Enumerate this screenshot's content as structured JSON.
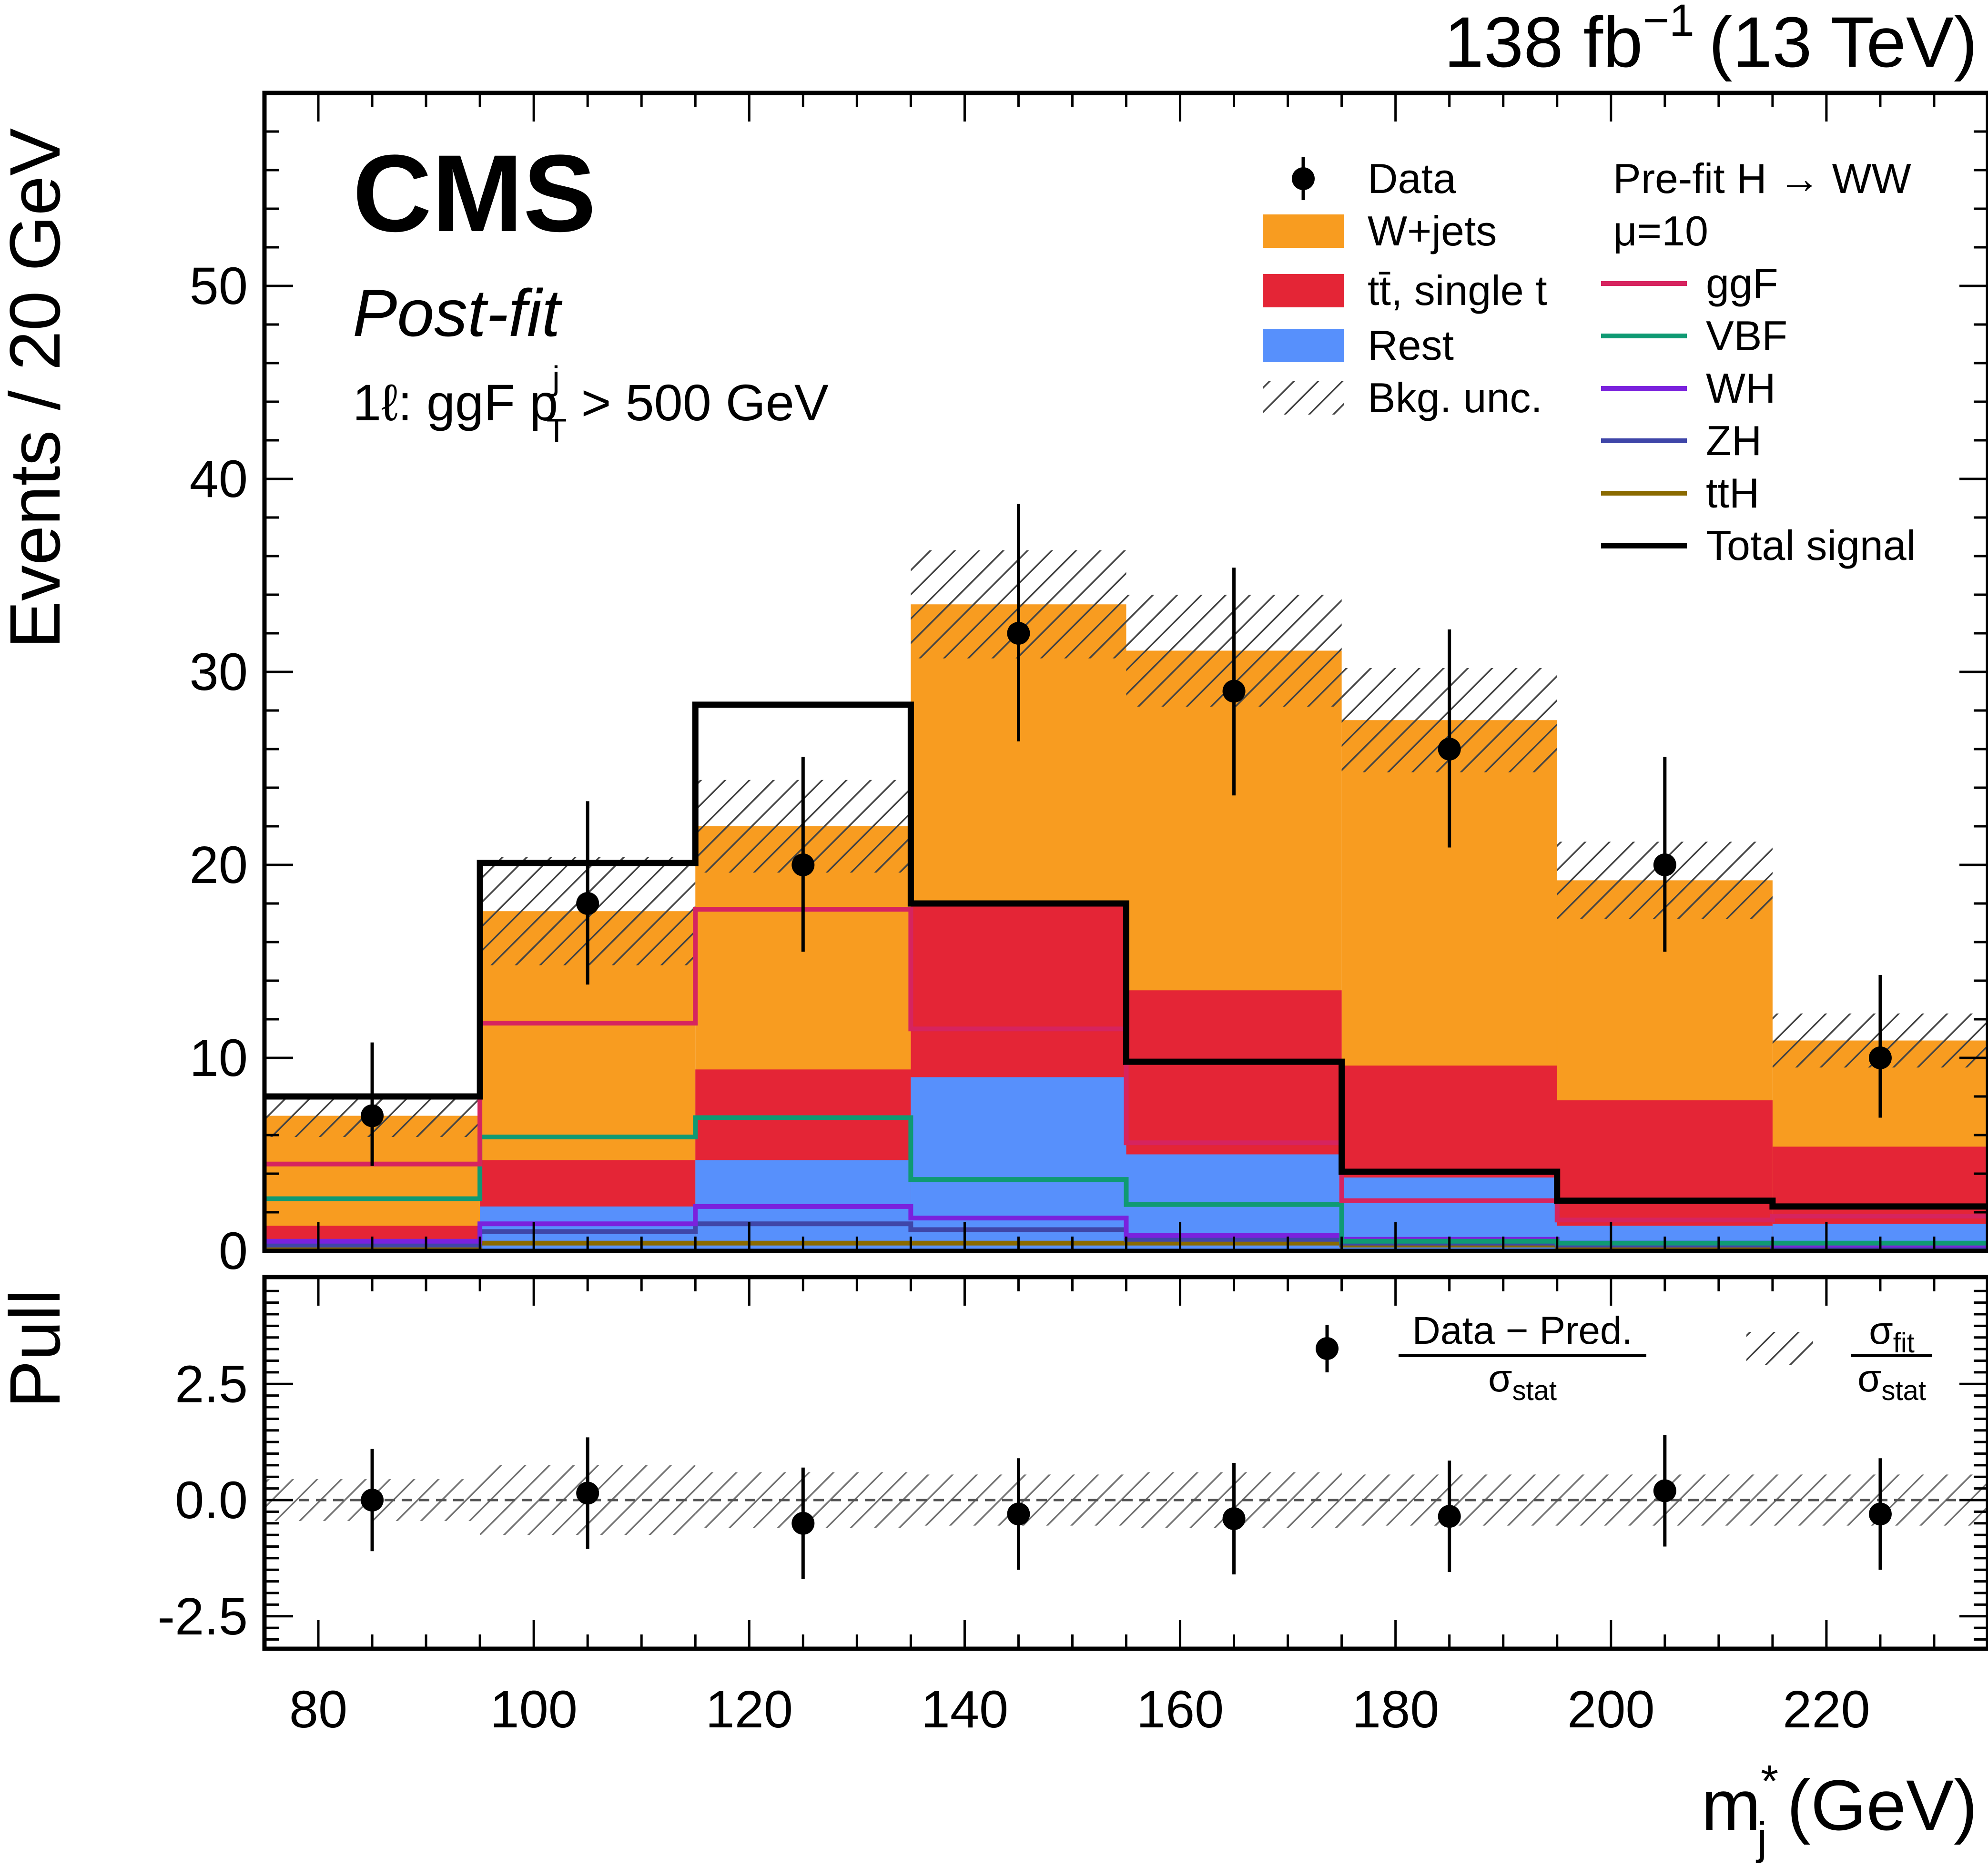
{
  "header": {
    "lumi": "138 fb",
    "lumi_exp": "−1",
    "energy": "(13 TeV)",
    "experiment": "CMS",
    "fit_label": "Post-fit",
    "region_a": "1ℓ: ggF p",
    "region_sub": "T",
    "region_sup": "j",
    "region_b": " > 500 GeV"
  },
  "axes": {
    "main_ylabel": "Events / 20 GeV",
    "pull_ylabel": "Pull",
    "xlabel_main": "m",
    "xlabel_sub": "j",
    "xlabel_sup": "*",
    "xlabel_unit": " (GeV)",
    "x_range": [
      75,
      235
    ],
    "y_range": [
      0,
      60
    ],
    "pull_range": [
      -3.2,
      4.8
    ]
  },
  "legend": {
    "data": "Data",
    "wjets": "W+jets",
    "tt": "tt̄, single t",
    "rest": "Rest",
    "unc": "Bkg. unc.",
    "signal_title": "Pre-fit H → WW",
    "mu": "μ=10",
    "ggf": "ggF",
    "vbf": "VBF",
    "wh": "WH",
    "zh": "ZH",
    "tth": "ttH",
    "total": "Total signal",
    "pull_num": "Data − Pred.",
    "pull_den_sigma": "σ",
    "pull_den_sub": "stat",
    "unc_num_sigma": "σ",
    "unc_num_sub": "fit",
    "unc_den_sigma": "σ",
    "unc_den_sub": "stat"
  },
  "colors": {
    "wjets": "#f89c20",
    "tt": "#e42536",
    "rest": "#5790fc",
    "ggf": "#d6245f",
    "vbf": "#0f9a73",
    "wh": "#7a21dd",
    "zh": "#3f46a8",
    "tth": "#8a6a00",
    "total": "#000000"
  },
  "chart_data": {
    "type": "bar",
    "x_edges": [
      75,
      95,
      115,
      135,
      155,
      175,
      195,
      215,
      235
    ],
    "x_ticks": [
      80,
      100,
      120,
      140,
      160,
      180,
      200,
      220
    ],
    "y_ticks": [
      0,
      10,
      20,
      30,
      40,
      50
    ],
    "pull_ticks": [
      -2.5,
      0.0,
      2.5
    ],
    "stack": {
      "rest": [
        0.4,
        2.3,
        4.7,
        9.0,
        5.0,
        3.8,
        1.3,
        1.4
      ],
      "tt": [
        1.3,
        4.7,
        9.4,
        17.9,
        13.5,
        9.6,
        7.8,
        5.4
      ],
      "wjets": [
        7.0,
        17.6,
        22.0,
        33.5,
        31.1,
        27.5,
        19.2,
        10.9
      ]
    },
    "bkg_unc": [
      1.1,
      2.8,
      2.4,
      2.8,
      2.9,
      2.7,
      2.0,
      1.4
    ],
    "signals": {
      "ggf": [
        4.5,
        11.8,
        17.7,
        11.5,
        5.6,
        2.6,
        1.6,
        1.8
      ],
      "vbf": [
        2.7,
        5.9,
        6.9,
        3.7,
        2.4,
        0.5,
        0.4,
        0.4
      ],
      "wh": [
        0.5,
        1.4,
        2.3,
        1.7,
        0.8,
        0.6,
        0.4,
        0.3
      ],
      "zh": [
        0.3,
        1.0,
        1.4,
        1.1,
        0.6,
        0.4,
        0.3,
        0.2
      ],
      "tth": [
        0.2,
        0.4,
        0.4,
        0.4,
        0.4,
        0.3,
        0.2,
        0.2
      ],
      "total": [
        8.0,
        20.1,
        28.3,
        18.0,
        9.8,
        4.1,
        2.6,
        2.3
      ]
    },
    "data": {
      "x": [
        85,
        105,
        125,
        145,
        165,
        185,
        205,
        225
      ],
      "y": [
        7,
        18,
        20,
        32,
        29,
        26,
        20,
        10
      ],
      "err_up": [
        3.8,
        5.3,
        5.6,
        6.7,
        6.4,
        6.2,
        5.6,
        4.3
      ],
      "err_down": [
        2.6,
        4.2,
        4.5,
        5.6,
        5.4,
        5.1,
        4.5,
        3.1
      ]
    },
    "pull": {
      "y": [
        0.0,
        0.15,
        -0.5,
        -0.3,
        -0.4,
        -0.35,
        0.2,
        -0.3
      ],
      "err": [
        1.1,
        1.2,
        1.2,
        1.2,
        1.2,
        1.2,
        1.2,
        1.2
      ]
    },
    "pull_unc": [
      0.45,
      0.75,
      0.6,
      0.55,
      0.6,
      0.55,
      0.55,
      0.55
    ]
  }
}
